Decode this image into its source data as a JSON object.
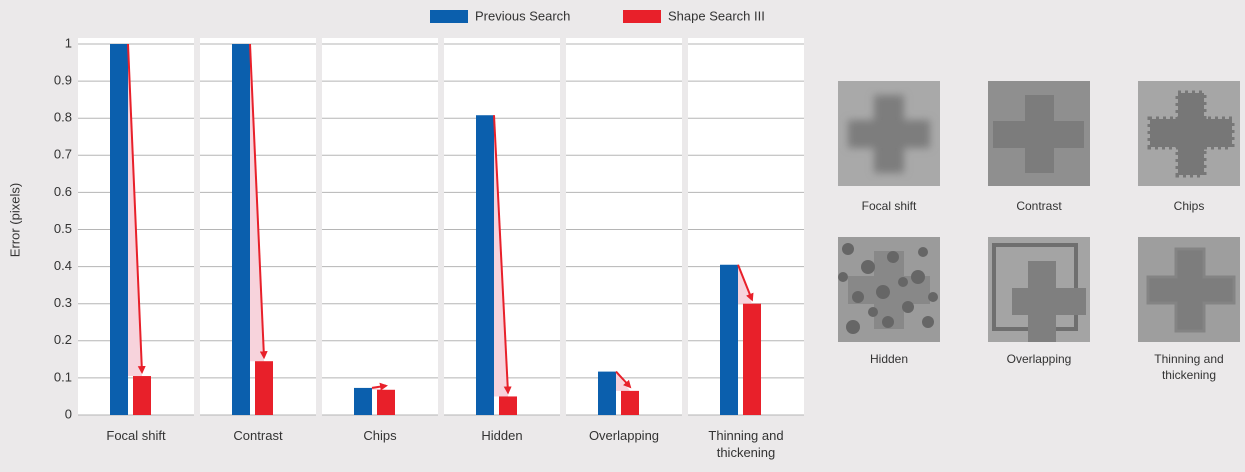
{
  "chart_data": {
    "type": "bar",
    "y_label": "Error (pixels)",
    "categories": [
      "Focal shift",
      "Contrast",
      "Chips",
      "Hidden",
      "Overlapping",
      "Thinning and thickening"
    ],
    "series": [
      {
        "name": "Previous Search",
        "color": "#0b5fad",
        "values": [
          1.0,
          1.0,
          0.073,
          0.808,
          0.117,
          0.405
        ]
      },
      {
        "name": "Shape Search III",
        "color": "#e8202a",
        "values": [
          0.105,
          0.145,
          0.068,
          0.05,
          0.065,
          0.3
        ]
      }
    ],
    "ylim": [
      0,
      1
    ],
    "yticks": [
      0,
      0.1,
      0.2,
      0.3,
      0.4,
      0.5,
      0.6,
      0.7,
      0.8,
      0.9,
      1
    ],
    "grid": true,
    "legend": "top"
  },
  "images": [
    {
      "label": "Focal shift"
    },
    {
      "label": "Contrast"
    },
    {
      "label": "Chips"
    },
    {
      "label": "Hidden"
    },
    {
      "label": "Overlapping"
    },
    {
      "label": "Thinning and thickening"
    }
  ]
}
